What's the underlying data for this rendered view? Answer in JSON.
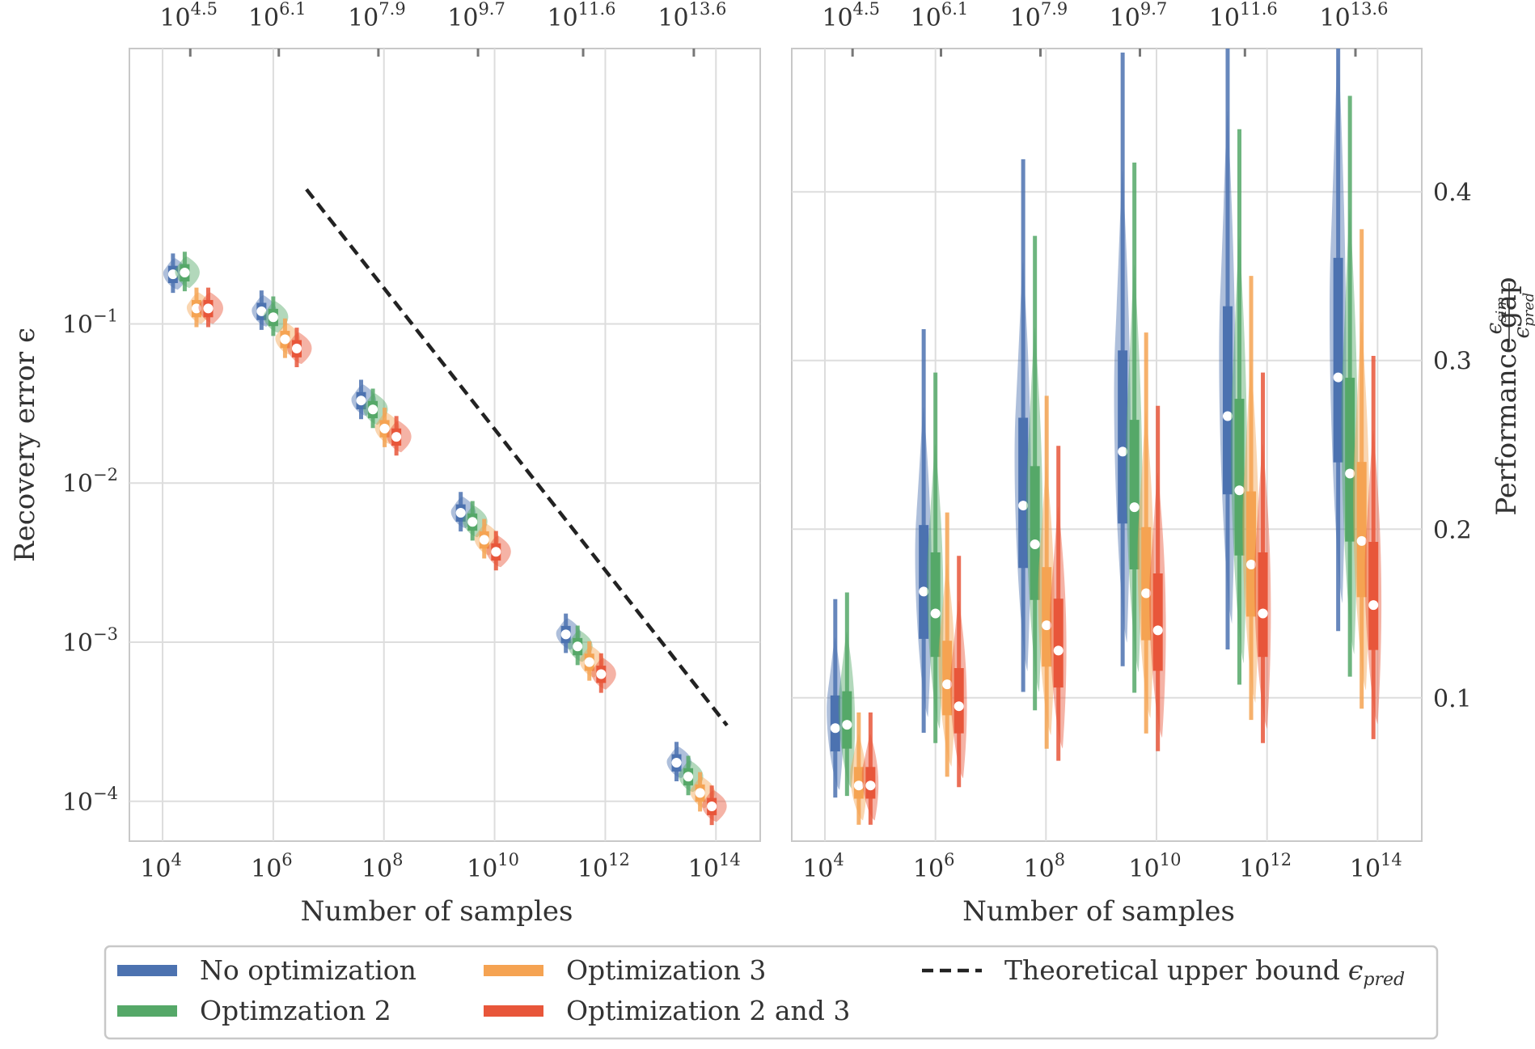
{
  "figure": {
    "legend": {
      "entries": [
        {
          "label": "No optimization",
          "color": "#4c72b0",
          "style": "solid"
        },
        {
          "label": "Optimzation 2",
          "color": "#55a868",
          "style": "solid"
        },
        {
          "label": "Optimization 3",
          "color": "#f5a352",
          "style": "solid"
        },
        {
          "label": "Optimization 2 and 3",
          "color": "#e8563a",
          "style": "solid"
        },
        {
          "label": "Theoretical upper bound",
          "sub": "pred",
          "color": "#222222",
          "style": "dashed"
        }
      ],
      "placement": "bottom-center"
    }
  },
  "chart_data": [
    {
      "type": "violin",
      "xlabel": "Number of samples",
      "ylabel": "Recovery error ϵ",
      "x_scale": "log10",
      "y_scale": "log10",
      "xlim_exponent": [
        3.4,
        14.8
      ],
      "ylim_exponent": [
        -4.25,
        0.73
      ],
      "x_ticks": [
        {
          "exp": 4,
          "base": "10",
          "sup": "4"
        },
        {
          "exp": 6,
          "base": "10",
          "sup": "6"
        },
        {
          "exp": 8,
          "base": "10",
          "sup": "8"
        },
        {
          "exp": 10,
          "base": "10",
          "sup": "10"
        },
        {
          "exp": 12,
          "base": "10",
          "sup": "12"
        },
        {
          "exp": 14,
          "base": "10",
          "sup": "14"
        }
      ],
      "y_ticks": [
        {
          "exp": -1,
          "base": "10",
          "sup": "−1"
        },
        {
          "exp": -2,
          "base": "10",
          "sup": "−2"
        },
        {
          "exp": -3,
          "base": "10",
          "sup": "−3"
        },
        {
          "exp": -4,
          "base": "10",
          "sup": "−4"
        }
      ],
      "top_ticks": [
        {
          "exp": 4.5,
          "base": "10",
          "sup": "4.5"
        },
        {
          "exp": 6.1,
          "base": "10",
          "sup": "6.1"
        },
        {
          "exp": 7.9,
          "base": "10",
          "sup": "7.9"
        },
        {
          "exp": 9.7,
          "base": "10",
          "sup": "9.7"
        },
        {
          "exp": 11.6,
          "base": "10",
          "sup": "11.6"
        },
        {
          "exp": 13.6,
          "base": "10",
          "sup": "13.6"
        }
      ],
      "groups": [
        {
          "x_exp": 4.5,
          "medians": [
            0.205,
            0.21,
            0.125,
            0.125
          ]
        },
        {
          "x_exp": 6.1,
          "medians": [
            0.12,
            0.11,
            0.08,
            0.07
          ]
        },
        {
          "x_exp": 7.9,
          "medians": [
            0.033,
            0.029,
            0.022,
            0.0195
          ]
        },
        {
          "x_exp": 9.7,
          "medians": [
            0.0065,
            0.0057,
            0.0044,
            0.0037
          ]
        },
        {
          "x_exp": 11.6,
          "medians": [
            0.00112,
            0.00094,
            0.00075,
            0.00063
          ]
        },
        {
          "x_exp": 13.6,
          "medians": [
            0.000175,
            0.000143,
            0.000113,
            9.3e-05
          ]
        }
      ],
      "bound_line": {
        "x_exp": [
          6.6,
          14.2
        ],
        "y": [
          0.7,
          0.0003
        ]
      },
      "grid": true
    },
    {
      "type": "violin",
      "xlabel": "Number of samples",
      "ylabel": "Performance gap",
      "ylabel_fraction": {
        "num_base": "ϵ",
        "num_sub": "sim",
        "den_base": "ϵ",
        "den_sub": "pred"
      },
      "x_scale": "log10",
      "y_scale": "linear",
      "xlim_exponent": [
        3.4,
        14.8
      ],
      "ylim": [
        0.015,
        0.485
      ],
      "x_ticks": [
        {
          "exp": 4,
          "base": "10",
          "sup": "4"
        },
        {
          "exp": 6,
          "base": "10",
          "sup": "6"
        },
        {
          "exp": 8,
          "base": "10",
          "sup": "8"
        },
        {
          "exp": 10,
          "base": "10",
          "sup": "10"
        },
        {
          "exp": 12,
          "base": "10",
          "sup": "12"
        },
        {
          "exp": 14,
          "base": "10",
          "sup": "14"
        }
      ],
      "y_ticks": [
        {
          "value": 0.1,
          "label": "0.1"
        },
        {
          "value": 0.2,
          "label": "0.2"
        },
        {
          "value": 0.3,
          "label": "0.3"
        },
        {
          "value": 0.4,
          "label": "0.4"
        }
      ],
      "y_axis_side": "right",
      "top_ticks": [
        {
          "exp": 4.5,
          "base": "10",
          "sup": "4.5"
        },
        {
          "exp": 6.1,
          "base": "10",
          "sup": "6.1"
        },
        {
          "exp": 7.9,
          "base": "10",
          "sup": "7.9"
        },
        {
          "exp": 9.7,
          "base": "10",
          "sup": "9.7"
        },
        {
          "exp": 11.6,
          "base": "10",
          "sup": "11.6"
        },
        {
          "exp": 13.6,
          "base": "10",
          "sup": "13.6"
        }
      ],
      "groups": [
        {
          "x_exp": 4.5,
          "medians": [
            0.082,
            0.084,
            0.048,
            0.048
          ]
        },
        {
          "x_exp": 6.1,
          "medians": [
            0.163,
            0.15,
            0.108,
            0.095
          ]
        },
        {
          "x_exp": 7.9,
          "medians": [
            0.214,
            0.191,
            0.143,
            0.128
          ]
        },
        {
          "x_exp": 9.7,
          "medians": [
            0.246,
            0.213,
            0.162,
            0.14
          ]
        },
        {
          "x_exp": 11.6,
          "medians": [
            0.267,
            0.223,
            0.179,
            0.15
          ]
        },
        {
          "x_exp": 13.6,
          "medians": [
            0.29,
            0.233,
            0.193,
            0.155
          ]
        }
      ],
      "grid": true
    }
  ]
}
